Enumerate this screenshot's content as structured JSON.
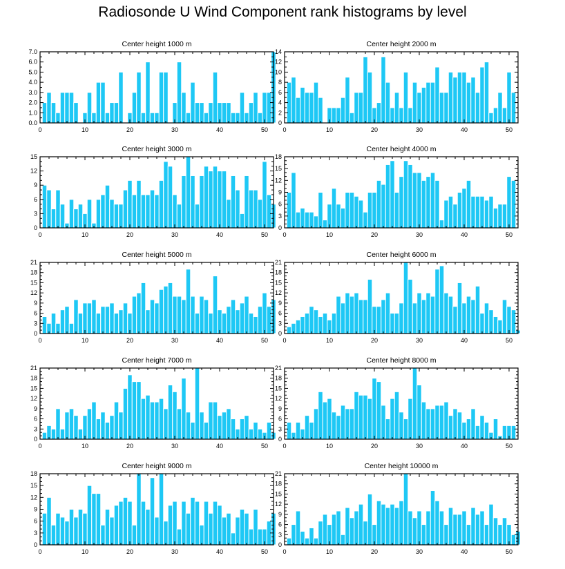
{
  "page": {
    "title": "Radiosonde U Wind Component rank histograms by level"
  },
  "style": {
    "bar_color": "#1EC8F5",
    "bar_edge": "#ffffff",
    "axis_color": "#000000"
  },
  "chart_data": [
    {
      "type": "bar",
      "title": "Center height 1000 m",
      "xlabel": "",
      "ylabel": "",
      "xlim": [
        0,
        52
      ],
      "ylim": [
        0,
        7
      ],
      "xticks": [
        0,
        10,
        20,
        30,
        40,
        50
      ],
      "yticks": [
        0,
        1,
        2,
        3,
        4,
        5,
        6,
        7
      ],
      "yticklabels": [
        "0.0",
        "1.0",
        "2.0",
        "3.0",
        "4.0",
        "5.0",
        "6.0",
        "7.0"
      ],
      "values": [
        2,
        3,
        2,
        1,
        3,
        3,
        3,
        2,
        0,
        1,
        3,
        1,
        4,
        4,
        1,
        2,
        2,
        5,
        0,
        1,
        3,
        5,
        1,
        6,
        1,
        1,
        5,
        5,
        0,
        2,
        6,
        3,
        1,
        4,
        2,
        2,
        1,
        2,
        5,
        2,
        2,
        2,
        1,
        1,
        3,
        1,
        2,
        3,
        1,
        3,
        3,
        7
      ]
    },
    {
      "type": "bar",
      "title": "Center height 2000 m",
      "xlabel": "",
      "ylabel": "",
      "xlim": [
        0,
        52
      ],
      "ylim": [
        0,
        14
      ],
      "xticks": [
        0,
        10,
        20,
        30,
        40,
        50
      ],
      "yticks": [
        0,
        2,
        4,
        6,
        8,
        10,
        12,
        14
      ],
      "yticklabels": [
        "0",
        "2",
        "4",
        "6",
        "8",
        "10",
        "12",
        "14"
      ],
      "values": [
        8,
        9,
        5,
        7,
        6,
        6,
        8,
        5,
        0,
        3,
        3,
        3,
        5,
        9,
        2,
        6,
        6,
        13,
        10,
        3,
        4,
        13,
        8,
        3,
        6,
        3,
        10,
        3,
        8,
        6,
        7,
        8,
        8,
        11,
        6,
        6,
        10,
        9,
        10,
        10,
        8,
        9,
        6,
        11,
        12,
        2,
        3,
        6,
        3,
        10,
        6,
        0
      ]
    },
    {
      "type": "bar",
      "title": "Center height 3000 m",
      "xlabel": "",
      "ylabel": "",
      "xlim": [
        0,
        52
      ],
      "ylim": [
        0,
        15
      ],
      "xticks": [
        0,
        10,
        20,
        30,
        40,
        50
      ],
      "yticks": [
        0,
        3,
        6,
        9,
        12,
        15
      ],
      "yticklabels": [
        "0",
        "3",
        "6",
        "9",
        "12",
        "15"
      ],
      "values": [
        9,
        8,
        4,
        8,
        5,
        1,
        6,
        4,
        5,
        3,
        6,
        1,
        6,
        7,
        9,
        6,
        5,
        5,
        8,
        10,
        7,
        10,
        7,
        7,
        8,
        7,
        10,
        14,
        13,
        7,
        5,
        11,
        15,
        11,
        5,
        11,
        13,
        12,
        13,
        12,
        12,
        6,
        11,
        8,
        3,
        11,
        8,
        8,
        6,
        14,
        7,
        5
      ]
    },
    {
      "type": "bar",
      "title": "Center height 4000 m",
      "xlabel": "",
      "ylabel": "",
      "xlim": [
        0,
        52
      ],
      "ylim": [
        0,
        18
      ],
      "xticks": [
        0,
        10,
        20,
        30,
        40,
        50
      ],
      "yticks": [
        0,
        3,
        6,
        9,
        12,
        15,
        18
      ],
      "yticklabels": [
        "0",
        "3",
        "6",
        "9",
        "12",
        "15",
        "18"
      ],
      "values": [
        9,
        14,
        4,
        5,
        4,
        4,
        3,
        9,
        2,
        6,
        10,
        6,
        5,
        9,
        9,
        8,
        7,
        4,
        9,
        9,
        12,
        11,
        16,
        17,
        9,
        13,
        17,
        16,
        14,
        14,
        12,
        13,
        14,
        12,
        2,
        7,
        8,
        6,
        9,
        10,
        12,
        8,
        8,
        8,
        7,
        8,
        5,
        6,
        6,
        13,
        12,
        0
      ]
    },
    {
      "type": "bar",
      "title": "Center height 5000 m",
      "xlabel": "",
      "ylabel": "",
      "xlim": [
        0,
        52
      ],
      "ylim": [
        0,
        21
      ],
      "xticks": [
        0,
        10,
        20,
        30,
        40,
        50
      ],
      "yticks": [
        0,
        3,
        6,
        9,
        12,
        15,
        18,
        21
      ],
      "yticklabels": [
        "0",
        "3",
        "6",
        "9",
        "12",
        "15",
        "18",
        "21"
      ],
      "values": [
        5,
        3,
        6,
        3,
        7,
        8,
        3,
        10,
        6,
        9,
        9,
        10,
        6,
        8,
        8,
        9,
        6,
        7,
        9,
        6,
        11,
        12,
        15,
        7,
        10,
        9,
        13,
        14,
        15,
        11,
        11,
        10,
        19,
        11,
        6,
        11,
        10,
        6,
        17,
        7,
        6,
        8,
        10,
        7,
        9,
        11,
        6,
        5,
        8,
        12,
        8,
        10
      ]
    },
    {
      "type": "bar",
      "title": "Center height 6000 m",
      "xlabel": "",
      "ylabel": "",
      "xlim": [
        0,
        52
      ],
      "ylim": [
        0,
        21
      ],
      "xticks": [
        0,
        10,
        20,
        30,
        40,
        50
      ],
      "yticks": [
        0,
        3,
        6,
        9,
        12,
        15,
        18,
        21
      ],
      "yticklabels": [
        "0",
        "3",
        "6",
        "9",
        "12",
        "15",
        "18",
        "21"
      ],
      "values": [
        2,
        3,
        4,
        5,
        6,
        8,
        7,
        5,
        6,
        4,
        6,
        11,
        9,
        12,
        11,
        12,
        10,
        10,
        16,
        8,
        8,
        10,
        12,
        6,
        6,
        9,
        21,
        16,
        9,
        12,
        10,
        12,
        11,
        19,
        20,
        12,
        11,
        8,
        15,
        9,
        11,
        10,
        14,
        6,
        9,
        7,
        5,
        4,
        10,
        8,
        7,
        1
      ]
    },
    {
      "type": "bar",
      "title": "Center height 7000 m",
      "xlabel": "",
      "ylabel": "",
      "xlim": [
        0,
        52
      ],
      "ylim": [
        0,
        21
      ],
      "xticks": [
        0,
        10,
        20,
        30,
        40,
        50
      ],
      "yticks": [
        0,
        3,
        6,
        9,
        12,
        15,
        18,
        21
      ],
      "yticklabels": [
        "0",
        "3",
        "6",
        "9",
        "12",
        "15",
        "18",
        "21"
      ],
      "values": [
        2,
        4,
        3,
        9,
        3,
        8,
        9,
        7,
        3,
        7,
        9,
        11,
        6,
        8,
        5,
        7,
        11,
        8,
        15,
        19,
        17,
        17,
        12,
        13,
        11,
        11,
        12,
        9,
        16,
        14,
        9,
        18,
        8,
        5,
        21,
        8,
        5,
        11,
        11,
        7,
        8,
        9,
        6,
        3,
        6,
        7,
        3,
        5,
        3,
        2,
        5,
        2
      ]
    },
    {
      "type": "bar",
      "title": "Center height 8000 m",
      "xlabel": "",
      "ylabel": "",
      "xlim": [
        0,
        52
      ],
      "ylim": [
        0,
        21
      ],
      "xticks": [
        0,
        10,
        20,
        30,
        40,
        50
      ],
      "yticks": [
        0,
        3,
        6,
        9,
        12,
        15,
        18,
        21
      ],
      "yticklabels": [
        "0",
        "3",
        "6",
        "9",
        "12",
        "15",
        "18",
        "21"
      ],
      "values": [
        5,
        2,
        5,
        3,
        7,
        5,
        9,
        14,
        11,
        12,
        8,
        7,
        10,
        9,
        9,
        14,
        13,
        13,
        12,
        18,
        17,
        10,
        6,
        12,
        14,
        8,
        6,
        12,
        21,
        16,
        11,
        9,
        9,
        10,
        10,
        11,
        7,
        9,
        8,
        5,
        6,
        9,
        4,
        7,
        5,
        2,
        6,
        1,
        4,
        4,
        4,
        0
      ]
    },
    {
      "type": "bar",
      "title": "Center height 9000 m",
      "xlabel": "",
      "ylabel": "",
      "xlim": [
        0,
        52
      ],
      "ylim": [
        0,
        18
      ],
      "xticks": [
        0,
        10,
        20,
        30,
        40,
        50
      ],
      "yticks": [
        0,
        3,
        6,
        9,
        12,
        15,
        18
      ],
      "yticklabels": [
        "0",
        "3",
        "6",
        "9",
        "12",
        "15",
        "18"
      ],
      "values": [
        8,
        12,
        5,
        8,
        7,
        6,
        9,
        7,
        9,
        8,
        15,
        13,
        13,
        5,
        9,
        7,
        10,
        11,
        12,
        11,
        5,
        18,
        11,
        9,
        17,
        7,
        18,
        6,
        10,
        11,
        4,
        11,
        8,
        12,
        11,
        5,
        11,
        8,
        11,
        10,
        7,
        8,
        3,
        7,
        9,
        8,
        4,
        9,
        4,
        4,
        6,
        8
      ]
    },
    {
      "type": "bar",
      "title": "Center height 10000 m",
      "xlabel": "",
      "ylabel": "",
      "xlim": [
        0,
        52
      ],
      "ylim": [
        0,
        21
      ],
      "xticks": [
        0,
        10,
        20,
        30,
        40,
        50
      ],
      "yticks": [
        0,
        3,
        6,
        9,
        12,
        15,
        18,
        21
      ],
      "yticklabels": [
        "0",
        "3",
        "6",
        "9",
        "12",
        "15",
        "18",
        "21"
      ],
      "values": [
        2,
        6,
        10,
        4,
        2,
        5,
        2,
        7,
        9,
        6,
        9,
        10,
        3,
        11,
        8,
        10,
        12,
        7,
        15,
        6,
        13,
        12,
        11,
        12,
        11,
        13,
        21,
        10,
        8,
        10,
        6,
        10,
        16,
        13,
        10,
        6,
        11,
        9,
        9,
        10,
        6,
        11,
        9,
        10,
        6,
        12,
        8,
        6,
        8,
        6,
        3,
        4
      ]
    }
  ]
}
